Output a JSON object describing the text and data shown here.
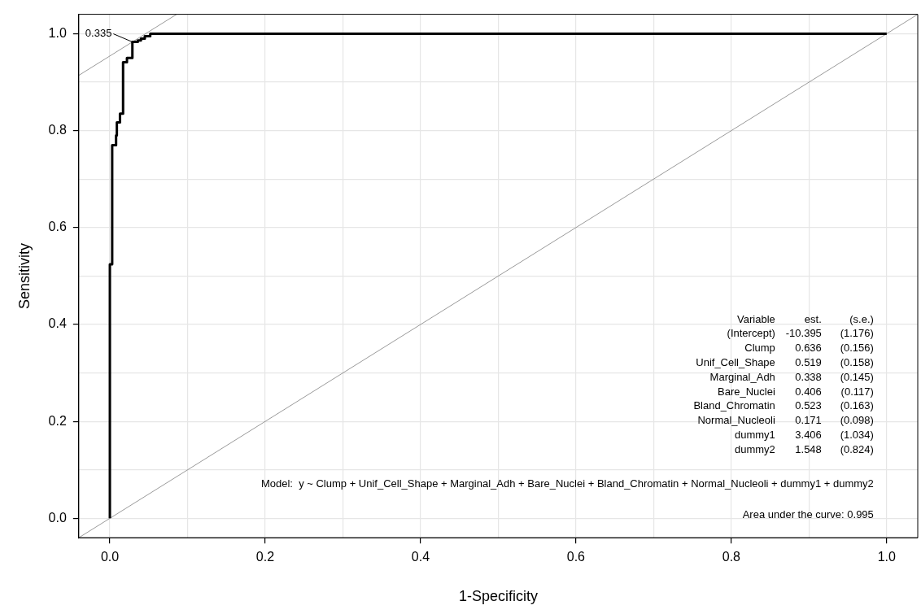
{
  "chart_data": {
    "type": "line",
    "xlabel": "1-Specificity",
    "ylabel": "Sensitivity",
    "xlim": [
      -0.04,
      1.04
    ],
    "ylim": [
      -0.04,
      1.04
    ],
    "xticks": [
      {
        "value": 0,
        "label": "0.0"
      },
      {
        "value": 0.1,
        "label": null
      },
      {
        "value": 0.2,
        "label": "0.2"
      },
      {
        "value": 0.3,
        "label": null
      },
      {
        "value": 0.4,
        "label": "0.4"
      },
      {
        "value": 0.5,
        "label": null
      },
      {
        "value": 0.6,
        "label": "0.6"
      },
      {
        "value": 0.7,
        "label": null
      },
      {
        "value": 0.8,
        "label": "0.8"
      },
      {
        "value": 0.9,
        "label": null
      },
      {
        "value": 1,
        "label": "1.0"
      }
    ],
    "yticks": [
      {
        "value": 0,
        "label": "0.0"
      },
      {
        "value": 0.1,
        "label": null
      },
      {
        "value": 0.2,
        "label": "0.2"
      },
      {
        "value": 0.3,
        "label": null
      },
      {
        "value": 0.4,
        "label": "0.4"
      },
      {
        "value": 0.5,
        "label": null
      },
      {
        "value": 0.6,
        "label": "0.6"
      },
      {
        "value": 0.7,
        "label": null
      },
      {
        "value": 0.8,
        "label": "0.8"
      },
      {
        "value": 0.9,
        "label": null
      },
      {
        "value": 1,
        "label": "1.0"
      }
    ],
    "grid": true,
    "legend": false,
    "marker": "none",
    "line_style": "solid",
    "series": [
      {
        "color": "#000000",
        "x": [
          0,
          0,
          0.003,
          0.003,
          0.008,
          0.008,
          0.009,
          0.009,
          0.013,
          0.013,
          0.017,
          0.017,
          0.022,
          0.022,
          0.029,
          0.029,
          0.036,
          0.036,
          0.04,
          0.04,
          0.045,
          0.045,
          0.052,
          0.052,
          1
        ],
        "values": [
          0,
          0.524,
          0.524,
          0.77,
          0.77,
          0.79,
          0.79,
          0.817,
          0.817,
          0.835,
          0.835,
          0.941,
          0.941,
          0.95,
          0.95,
          0.983,
          0.983,
          0.986,
          0.986,
          0.99,
          0.99,
          0.995,
          0.995,
          1,
          1
        ]
      },
      {
        "color": "#808080",
        "x": [
          -0.04,
          1.04
        ],
        "values": [
          -0.04,
          1.04
        ]
      },
      {
        "color": "#808080",
        "x": [
          -0.04,
          0.086
        ],
        "values": [
          0.914,
          1.04
        ]
      }
    ],
    "annotations": [
      {
        "text": "0.335",
        "x": 0.029,
        "y": 0.983
      },
      "Variable",
      "est.",
      "(s.e.)",
      "(Intercept)",
      "-10.395",
      "(1.176)",
      "Clump",
      "0.636",
      "(0.156)",
      "Unif_Cell_Shape",
      "0.519",
      "(0.158)",
      "Marginal_Adh",
      "0.338",
      "(0.145)",
      "Bare_Nuclei",
      "0.406",
      "(0.117)",
      "Bland_Chromatin",
      "0.523",
      "(0.163)",
      "Normal_Nucleoli",
      "0.171",
      "(0.098)",
      "dummy1",
      "3.406",
      "(1.034)",
      "dummy2",
      "1.548",
      "(0.824)",
      "Model:  y ~ Clump + Unif_Cell_Shape + Marginal_Adh + Bare_Nuclei + Bland_Chromatin + Normal_Nucleoli + dummy1 + dummy2",
      "Area under the curve: 0.995"
    ]
  }
}
